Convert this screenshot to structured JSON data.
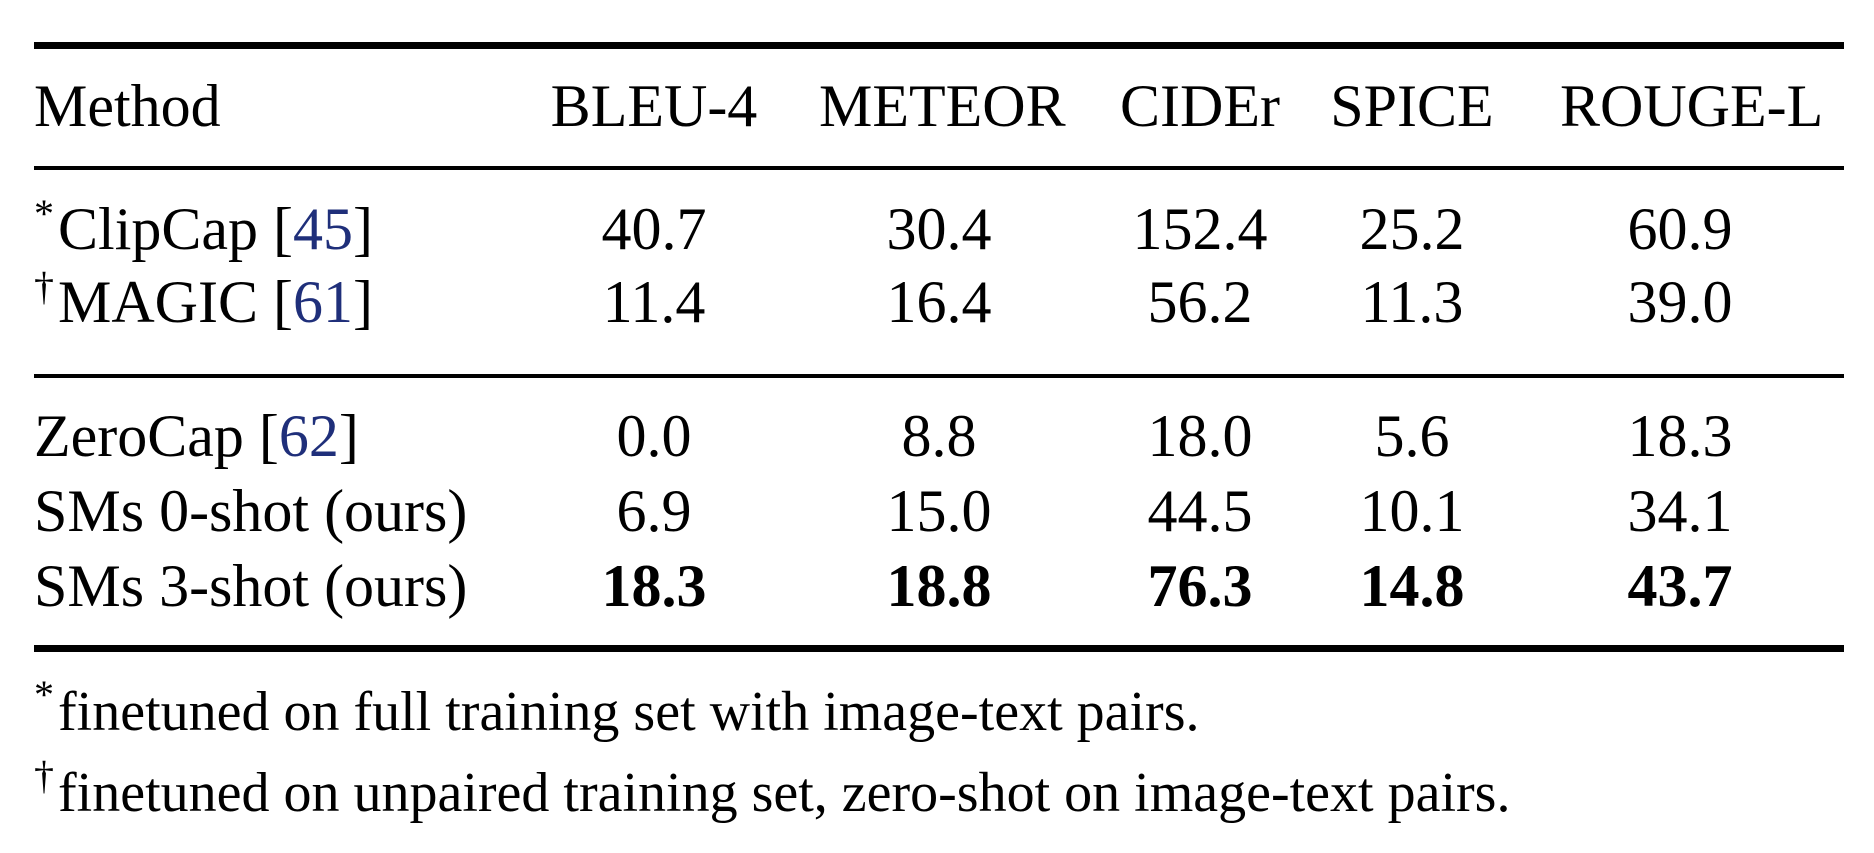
{
  "table": {
    "headers": [
      "Method",
      "BLEU-4",
      "METEOR",
      "CIDEr",
      "SPICE",
      "ROUGE-L"
    ],
    "rows": [
      {
        "mark": "*",
        "name": "ClipCap [",
        "cite": "45",
        "close": "]",
        "values": [
          "40.7",
          "30.4",
          "152.4",
          "25.2",
          "60.9"
        ]
      },
      {
        "mark": "†",
        "name": "MAGIC [",
        "cite": "61",
        "close": "]",
        "values": [
          "11.4",
          "16.4",
          "56.2",
          "11.3",
          "39.0"
        ]
      },
      {
        "mark": "",
        "name": "ZeroCap [",
        "cite": "62",
        "close": "]",
        "values": [
          "0.0",
          "8.8",
          "18.0",
          "5.6",
          "18.3"
        ]
      },
      {
        "mark": "",
        "name": "SMs 0-shot (ours)",
        "cite": "",
        "close": "",
        "values": [
          "6.9",
          "15.0",
          "44.5",
          "10.1",
          "34.1"
        ]
      },
      {
        "mark": "",
        "name": "SMs 3-shot (ours)",
        "cite": "",
        "close": "",
        "values": [
          "18.3",
          "18.8",
          "76.3",
          "14.8",
          "43.7"
        ]
      }
    ]
  },
  "footnotes": [
    {
      "mark": "*",
      "text": "finetuned on full training set with image-text pairs."
    },
    {
      "mark": "†",
      "text": "finetuned on unpaired training set, zero-shot on image-text pairs."
    }
  ],
  "colors": {
    "citation": "#1f2f7a",
    "text": "#000000"
  }
}
